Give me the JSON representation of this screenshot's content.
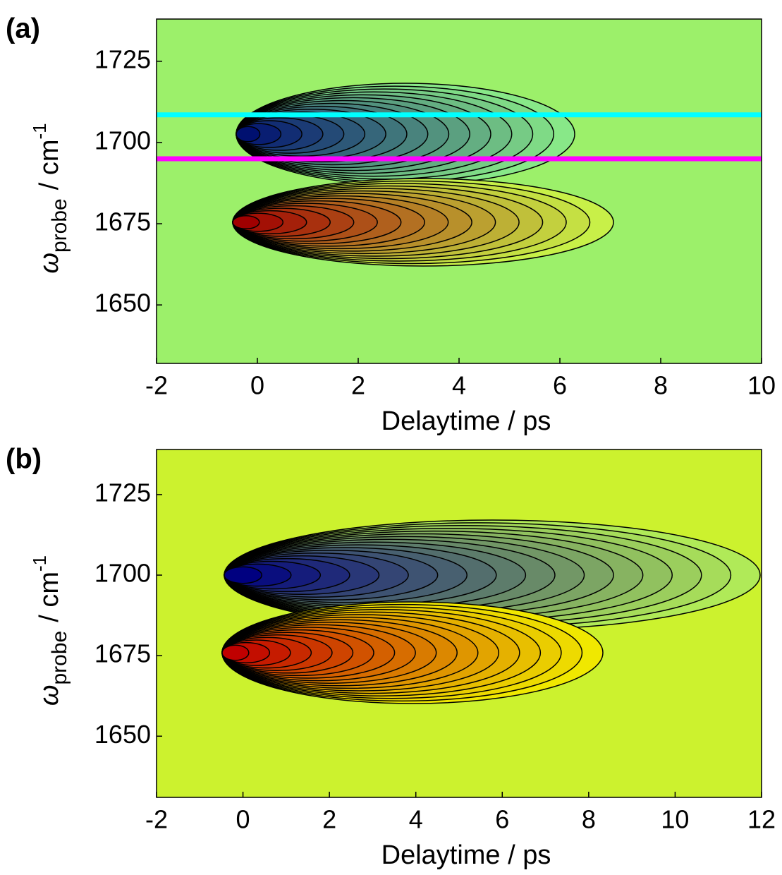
{
  "chart_data": [
    {
      "type": "contour",
      "panel_label": "(a)",
      "xlabel": "Delaytime / ps",
      "ylabel": {
        "symbol": "ω",
        "subscript": "probe",
        "unit": "/ cm",
        "exponent": "-1"
      },
      "xlim": [
        -2,
        10
      ],
      "xticks": [
        -2,
        0,
        2,
        4,
        6,
        8,
        10
      ],
      "ylim": [
        1632,
        1738
      ],
      "yticks": [
        1650,
        1675,
        1700,
        1725
      ],
      "hlines": [
        {
          "value": 1708.5,
          "color": "#00ffff"
        },
        {
          "value": 1695,
          "color": "#ff00ff"
        }
      ]
    },
    {
      "type": "contour",
      "panel_label": "(b)",
      "xlabel": "Delaytime / ps",
      "ylabel": {
        "symbol": "ω",
        "subscript": "probe",
        "unit": "/ cm",
        "exponent": "-1"
      },
      "xlim": [
        -2,
        12
      ],
      "xticks": [
        -2,
        0,
        2,
        4,
        6,
        8,
        10,
        12
      ],
      "ylim": [
        1631,
        1739
      ],
      "yticks": [
        1650,
        1675,
        1700,
        1725
      ]
    }
  ]
}
